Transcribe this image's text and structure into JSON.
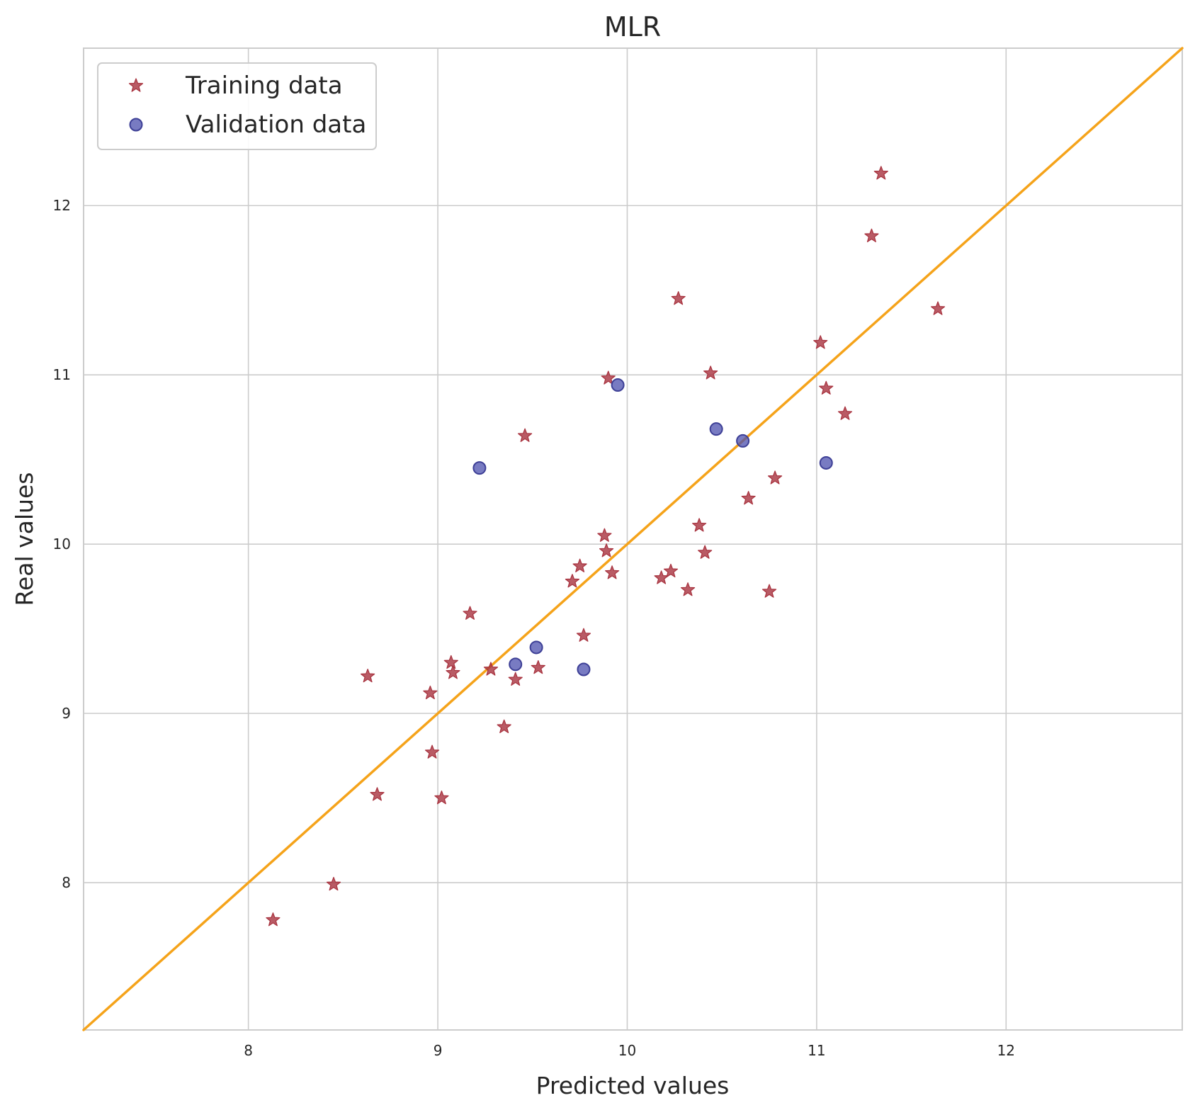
{
  "chart_data": {
    "type": "scatter",
    "title": "MLR",
    "xlabel": "Predicted values",
    "ylabel": "Real values",
    "xlim": [
      7.13,
      12.93
    ],
    "ylim": [
      7.13,
      12.93
    ],
    "xticks": [
      "8",
      "9",
      "10",
      "11",
      "12"
    ],
    "yticks": [
      "8",
      "9",
      "10",
      "11",
      "12"
    ],
    "grid": true,
    "legend_position": "top-left",
    "reference_line": {
      "from": [
        7.13,
        7.13
      ],
      "to": [
        12.93,
        12.93
      ],
      "color": "#f5a31a"
    },
    "series": [
      {
        "name": "Training data",
        "marker": "star",
        "color": "#a8323e",
        "points": [
          [
            8.13,
            7.78
          ],
          [
            8.45,
            7.99
          ],
          [
            8.63,
            9.22
          ],
          [
            8.68,
            8.52
          ],
          [
            8.96,
            9.12
          ],
          [
            8.97,
            8.77
          ],
          [
            9.02,
            8.5
          ],
          [
            9.07,
            9.3
          ],
          [
            9.08,
            9.24
          ],
          [
            9.17,
            9.59
          ],
          [
            9.28,
            9.26
          ],
          [
            9.35,
            8.92
          ],
          [
            9.41,
            9.2
          ],
          [
            9.46,
            10.64
          ],
          [
            9.53,
            9.27
          ],
          [
            9.71,
            9.78
          ],
          [
            9.75,
            9.87
          ],
          [
            9.77,
            9.46
          ],
          [
            9.88,
            10.05
          ],
          [
            9.89,
            9.96
          ],
          [
            9.9,
            10.98
          ],
          [
            9.92,
            9.83
          ],
          [
            10.18,
            9.8
          ],
          [
            10.23,
            9.84
          ],
          [
            10.27,
            11.45
          ],
          [
            10.32,
            9.73
          ],
          [
            10.38,
            10.11
          ],
          [
            10.41,
            9.95
          ],
          [
            10.44,
            11.01
          ],
          [
            10.64,
            10.27
          ],
          [
            10.75,
            9.72
          ],
          [
            10.78,
            10.39
          ],
          [
            11.02,
            11.19
          ],
          [
            11.05,
            10.92
          ],
          [
            11.15,
            10.77
          ],
          [
            11.29,
            11.82
          ],
          [
            11.34,
            12.19
          ],
          [
            11.64,
            11.39
          ]
        ]
      },
      {
        "name": "Validation data",
        "marker": "circle",
        "color": "#4b4fae",
        "points": [
          [
            9.22,
            10.45
          ],
          [
            9.41,
            9.29
          ],
          [
            9.52,
            9.39
          ],
          [
            9.77,
            9.26
          ],
          [
            9.95,
            10.94
          ],
          [
            10.47,
            10.68
          ],
          [
            10.61,
            10.61
          ],
          [
            11.05,
            10.48
          ]
        ]
      }
    ]
  }
}
